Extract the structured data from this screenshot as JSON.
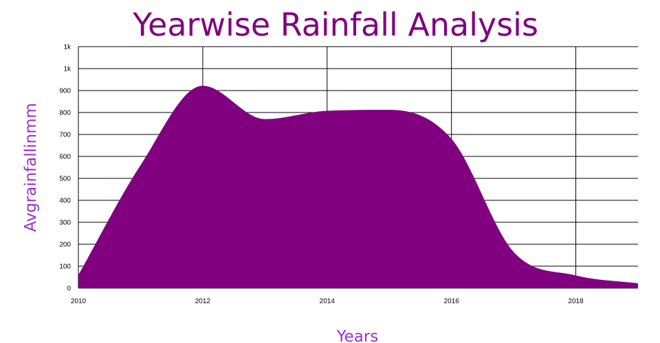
{
  "chart_data": {
    "type": "area",
    "title": "Yearwise Rainfall Analysis",
    "xlabel": "Years",
    "ylabel": "Avgrainfallinmm",
    "x": [
      2010,
      2011,
      2012,
      2013,
      2014,
      2015,
      2016,
      2017,
      2018,
      2019
    ],
    "series": [
      {
        "values": [
          60,
          560,
          922,
          770,
          808,
          812,
          680,
          165,
          58,
          22
        ]
      }
    ],
    "xlim": [
      2010,
      2019
    ],
    "ylim": [
      0,
      1100
    ],
    "x_ticks": [
      2010,
      2012,
      2014,
      2016,
      2018
    ],
    "x_tick_labels": [
      "2010",
      "2012",
      "2014",
      "2016",
      "2018"
    ],
    "y_ticks": [
      0,
      100,
      200,
      300,
      400,
      500,
      600,
      700,
      800,
      900,
      1000,
      1100
    ],
    "y_tick_labels": [
      "0",
      "100",
      "200",
      "300",
      "400",
      "500",
      "600",
      "700",
      "800",
      "900",
      "1k",
      "1k"
    ],
    "grid": true,
    "colors": {
      "fill": "#800080",
      "title": "#800080",
      "axis_label": "#9932CC",
      "grid": "#000000"
    }
  }
}
